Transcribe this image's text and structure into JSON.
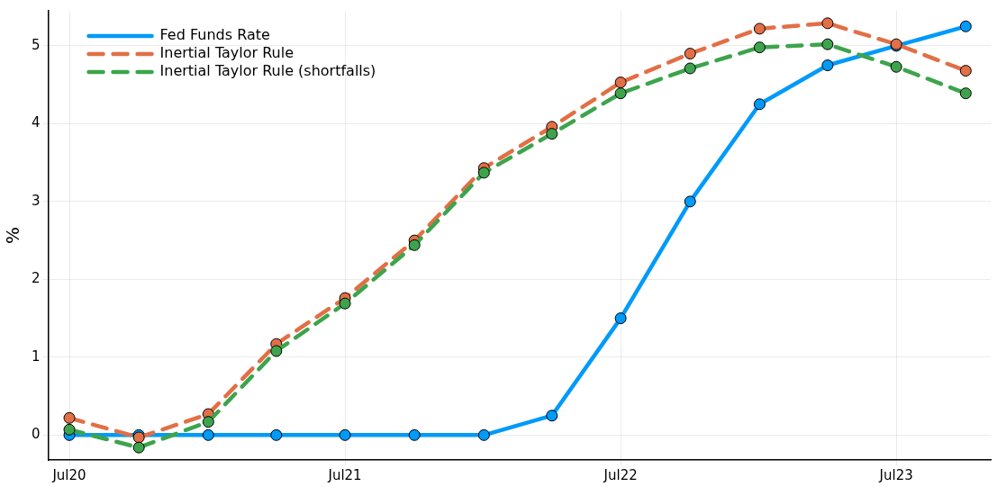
{
  "chart_data": {
    "type": "line",
    "ylabel": "%",
    "x": [
      "2020-07",
      "2020-10",
      "2021-01",
      "2021-04",
      "2021-07",
      "2021-10",
      "2022-01",
      "2022-04",
      "2022-07",
      "2022-10",
      "2023-01",
      "2023-04",
      "2023-07",
      "2023-10"
    ],
    "series": [
      {
        "name": "Fed Funds Rate",
        "color": "#009af9",
        "line_style": "solid",
        "values": [
          0,
          0,
          0,
          0,
          0,
          0,
          0,
          0.25,
          1.5,
          3.0,
          4.25,
          4.75,
          5.0,
          5.25
        ]
      },
      {
        "name": "Inertial Taylor Rule",
        "color": "#e26f46",
        "line_style": "dashed",
        "values": [
          0.22,
          -0.03,
          0.27,
          1.17,
          1.76,
          2.5,
          3.43,
          3.96,
          4.53,
          4.9,
          5.22,
          5.29,
          5.02,
          4.68
        ]
      },
      {
        "name": "Inertial Taylor Rule (shortfalls)",
        "color": "#3da44d",
        "line_style": "dashed",
        "values": [
          0.07,
          -0.16,
          0.17,
          1.08,
          1.69,
          2.44,
          3.37,
          3.87,
          4.39,
          4.71,
          4.98,
          5.02,
          4.73,
          4.39
        ]
      }
    ],
    "xlim": [
      "2020-06-03",
      "2023-11-03"
    ],
    "xticks": [
      {
        "value": "2020-07",
        "label": "Jul20"
      },
      {
        "value": "2021-07",
        "label": "Jul21"
      },
      {
        "value": "2022-07",
        "label": "Jul22"
      },
      {
        "value": "2023-07",
        "label": "Jul23"
      }
    ],
    "ylim": [
      -0.32,
      5.45
    ],
    "yticks": [
      0,
      1,
      2,
      3,
      4,
      5
    ],
    "grid": true,
    "legend": "top left",
    "marker": "circle"
  }
}
